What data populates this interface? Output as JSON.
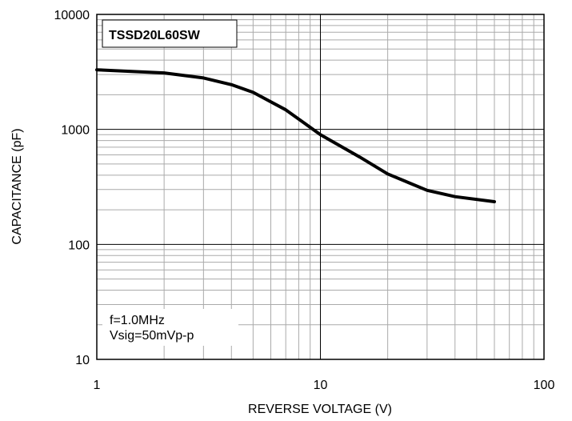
{
  "chart_data": {
    "type": "line",
    "xlabel": "REVERSE VOLTAGE (V)",
    "ylabel": "CAPACITANCE (pF)",
    "annotations": [
      "TSSD20L60SW",
      "f=1.0MHz",
      "Vsig=50mVp-p"
    ],
    "x": [
      1,
      2,
      3,
      4,
      5,
      7,
      10,
      15,
      20,
      30,
      40,
      60
    ],
    "series": [
      {
        "name": "TSSD20L60SW",
        "color": "#000000",
        "values": [
          3300,
          3100,
          2800,
          2450,
          2100,
          1480,
          900,
          575,
          410,
          295,
          260,
          235
        ]
      }
    ],
    "xlim": [
      1,
      100
    ],
    "ylim": [
      10,
      10000
    ],
    "xticks": [
      1,
      10,
      100
    ],
    "yticks": [
      10,
      100,
      1000,
      10000
    ],
    "xscale": "log",
    "yscale": "log",
    "grid": true,
    "minor_grid": true
  }
}
